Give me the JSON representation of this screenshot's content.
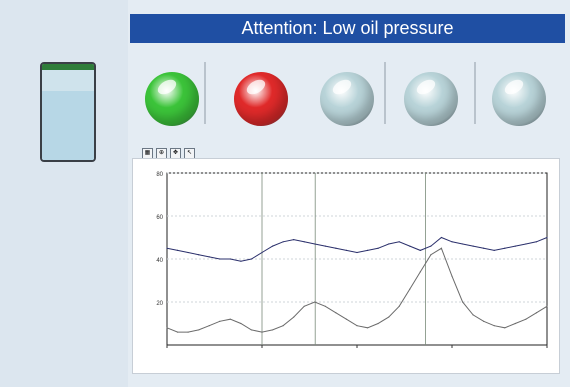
{
  "banner": {
    "text": "Attention: Low oil pressure"
  },
  "tank": {
    "label": "",
    "level_percent": 72
  },
  "lamps": [
    {
      "label": "",
      "state": "on",
      "color": "#3cc43a"
    },
    {
      "label": "",
      "state": "on",
      "color": "#e02a2a"
    },
    {
      "label": "",
      "state": "off",
      "color": "#b9d4d9"
    },
    {
      "label": "",
      "state": "off",
      "color": "#b9d4d9"
    },
    {
      "label": "",
      "state": "off",
      "color": "#b9d4d9"
    }
  ],
  "toolbar": [
    {
      "icon": "grid-icon"
    },
    {
      "icon": "zoom-icon"
    },
    {
      "icon": "pan-icon"
    },
    {
      "icon": "cursor-icon"
    }
  ],
  "chart_data": {
    "type": "line",
    "title": "",
    "xlabel": "",
    "ylabel": "",
    "ylim": [
      0,
      80
    ],
    "y_ticks": [
      "80",
      "60",
      "40",
      "20"
    ],
    "x_ticks": [
      "",
      "",
      "",
      "",
      ""
    ],
    "grid": true,
    "series": [
      {
        "name": "",
        "color": "#2a2f6b",
        "values": [
          45,
          44,
          43,
          42,
          41,
          40,
          40,
          39,
          40,
          43,
          46,
          48,
          49,
          48,
          47,
          46,
          45,
          44,
          43,
          44,
          45,
          47,
          48,
          46,
          44,
          46,
          50,
          48,
          47,
          46,
          45,
          44,
          45,
          46,
          47,
          48,
          50
        ]
      },
      {
        "name": "",
        "color": "#6b6b6b",
        "values": [
          8,
          6,
          6,
          7,
          9,
          11,
          12,
          10,
          7,
          6,
          7,
          9,
          13,
          18,
          20,
          18,
          15,
          12,
          9,
          8,
          10,
          13,
          18,
          26,
          34,
          42,
          45,
          32,
          20,
          14,
          11,
          9,
          8,
          10,
          12,
          15,
          18
        ]
      }
    ]
  }
}
